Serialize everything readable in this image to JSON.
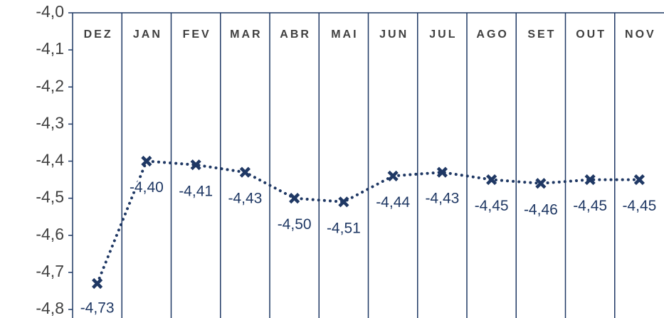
{
  "chart_data": {
    "type": "line",
    "categories": [
      "DEZ",
      "JAN",
      "FEV",
      "MAR",
      "ABR",
      "MAI",
      "JUN",
      "JUL",
      "AGO",
      "SET",
      "OUT",
      "NOV"
    ],
    "series": [
      {
        "color": "#1f3864",
        "values": [
          -4.73,
          -4.4,
          -4.41,
          -4.43,
          -4.5,
          -4.51,
          -4.44,
          -4.43,
          -4.45,
          -4.46,
          -4.45,
          -4.45
        ],
        "value_labels": [
          "-4,73",
          "-4,40",
          "-4,41",
          "-4,43",
          "-4,50",
          "-4,51",
          "-4,44",
          "-4,43",
          "-4,45",
          "-4,46",
          "-4,45",
          "-4,45"
        ]
      }
    ],
    "ylim": [
      -4.8,
      -4.0
    ],
    "yticks": [
      {
        "value": -4.8,
        "label": "-4,8"
      },
      {
        "value": -4.7,
        "label": "-4,7"
      },
      {
        "value": -4.6,
        "label": "-4,6"
      },
      {
        "value": -4.5,
        "label": "-4,5"
      },
      {
        "value": -4.4,
        "label": "-4,4"
      },
      {
        "value": -4.3,
        "label": "-4,3"
      },
      {
        "value": -4.2,
        "label": "-4,2"
      },
      {
        "value": -4.1,
        "label": "-4,1"
      },
      {
        "value": -4.0,
        "label": "-4,0"
      }
    ]
  }
}
